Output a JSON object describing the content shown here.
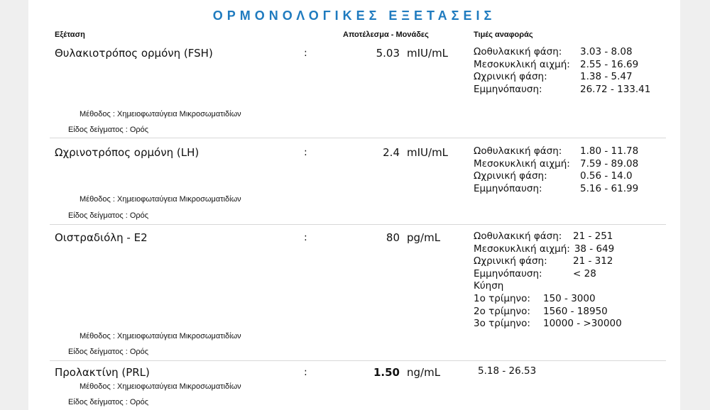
{
  "title": "ΟΡΜΟΝΟΛΟΓΙΚΕΣ ΕΞΕΤΑΣΕΙΣ",
  "headers": {
    "test": "Εξέταση",
    "result": "Αποτέλεσμα - Μονάδες",
    "reference": "Τιμές αναφοράς"
  },
  "tests": [
    {
      "name": "Θυλακιοτρόπος ορμόνη (FSH)",
      "colon": ":",
      "value": "5.03",
      "unit": "mIU/mL",
      "method": "Μέθοδος : Χημειοφωταύγεια Μικροσωματιδίων",
      "sample": "Είδος δείγματος : Ορός",
      "reference": [
        {
          "label": "Ωοθυλακική φάση:",
          "range": "3.03 - 8.08"
        },
        {
          "label": "Μεσοκυκλική αιχμή:",
          "range": "2.55 - 16.69"
        },
        {
          "label": "Ωχρινική φάση:",
          "range": "1.38 - 5.47"
        },
        {
          "label": "Εμμηνόπαυση:",
          "range": "26.72 - 133.41"
        }
      ]
    },
    {
      "name": "Ωχρινοτρόπος ορμόνη (LH)",
      "colon": ":",
      "value": "2.4",
      "unit": "mIU/mL",
      "method": "Μέθοδος : Χημειοφωταύγεια Μικροσωματιδίων",
      "sample": "Είδος δείγματος : Ορός",
      "reference": [
        {
          "label": "Ωοθυλακική φάση:",
          "range": "1.80 - 11.78"
        },
        {
          "label": "Μεσοκυκλική αιχμή:",
          "range": "7.59 - 89.08"
        },
        {
          "label": "Ωχρινική φάση:",
          "range": "0.56 - 14.0"
        },
        {
          "label": "Εμμηνόπαυση:",
          "range": "5.16 - 61.99"
        }
      ]
    },
    {
      "name": "Οιστραδιόλη - E2",
      "colon": ":",
      "value": "80",
      "unit": "pg/mL",
      "method": "Μέθοδος : Χημειοφωταύγεια Μικροσωματιδίων",
      "sample": "Είδος δείγματος : Ορός",
      "reference": [
        {
          "label": "Ωοθυλακική  φάση:",
          "range": "21 - 251"
        },
        {
          "label": "Μεσοκυκλική αιχμή:",
          "range": "38 - 649"
        },
        {
          "label": "Ωχρινική φάση:",
          "range": "21 - 312"
        },
        {
          "label": "Εμμηνόπαυση:",
          "range": "< 28"
        },
        {
          "label": "Κύηση",
          "range": ""
        },
        {
          "label": "1ο τρίμηνο:",
          "range": "150 - 3000"
        },
        {
          "label": "2ο τρίμηνο:",
          "range": "1560 - 18950"
        },
        {
          "label": "3ο τρίμηνο:",
          "range": "10000 - >30000"
        }
      ]
    },
    {
      "name": "Προλακτίνη (PRL)",
      "colon": ":",
      "value": "1.50",
      "unit": "ng/mL",
      "method": "Μέθοδος : Χημειοφωταύγεια Μικροσωματιδίων",
      "sample": "Είδος δείγματος : Ορός",
      "reference": [
        {
          "label": "",
          "range": "5.18 - 26.53"
        }
      ]
    }
  ]
}
